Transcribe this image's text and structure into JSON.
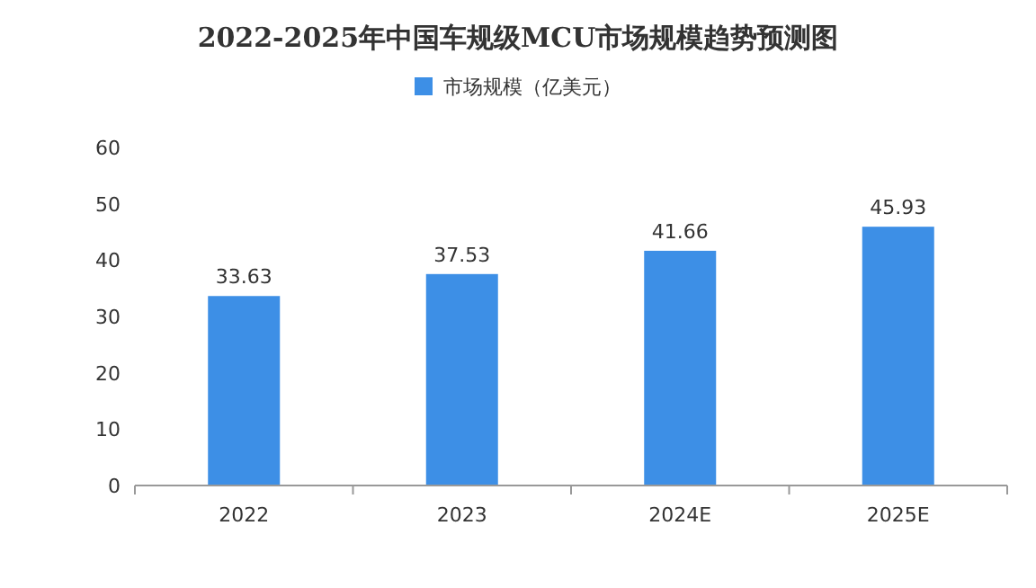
{
  "chart_data": {
    "type": "bar",
    "title": "2022-2025年中国车规级MCU市场规模趋势预测图",
    "categories": [
      "2022",
      "2023",
      "2024E",
      "2025E"
    ],
    "series": [
      {
        "name": "市场规模（亿美元）",
        "color": "#3d8fe6",
        "values": [
          33.63,
          37.53,
          41.66,
          45.93
        ]
      }
    ],
    "ylim": [
      0,
      60
    ],
    "yticks": [
      0,
      10,
      20,
      30,
      40,
      50,
      60
    ],
    "data_labels": true,
    "legend": "top"
  }
}
